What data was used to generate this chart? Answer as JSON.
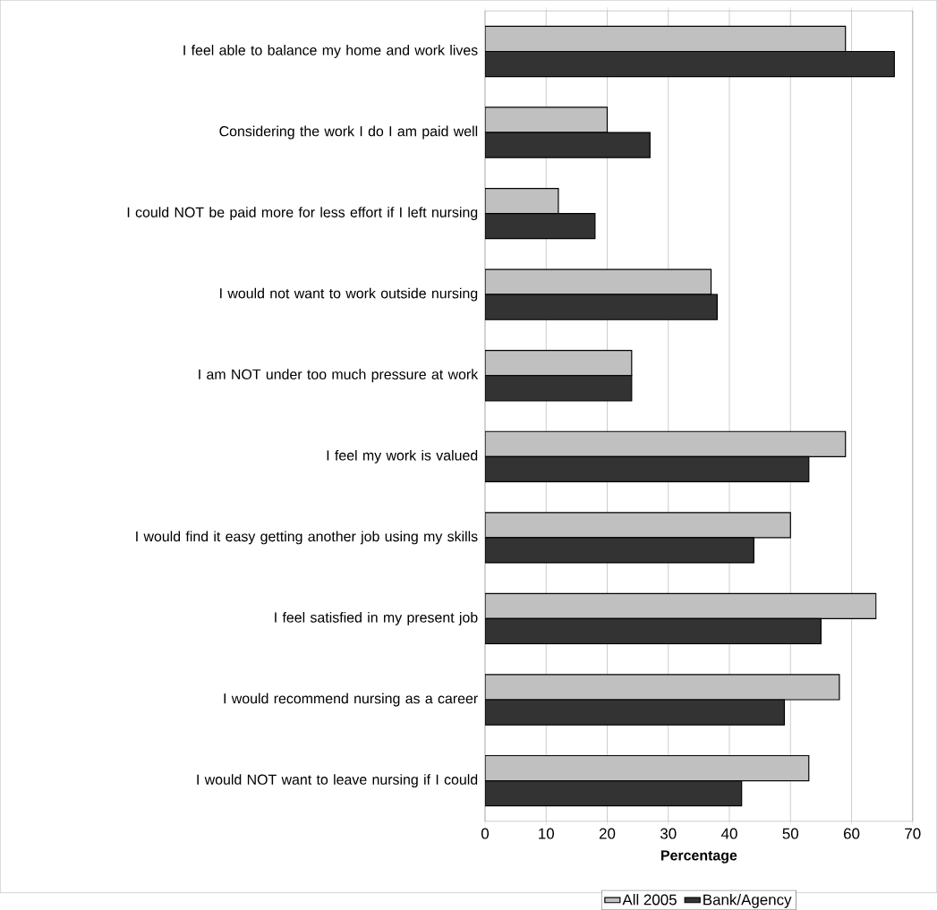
{
  "chart_data": {
    "type": "bar",
    "orientation": "horizontal",
    "xlabel": "Percentage",
    "categories": [
      "I feel able to balance my home and work lives",
      "Considering the work I do I am paid well",
      "I could NOT be paid more for less effort if I left nursing",
      "I would not want to work outside nursing",
      "I am NOT under too much pressure at work",
      "I feel my work is valued",
      "I would find it easy getting another job using my skills",
      "I feel satisfied in my present job",
      "I would recommend nursing as a career",
      "I would NOT want to leave nursing if I could"
    ],
    "series": [
      {
        "name": "All 2005",
        "color": "#c0c0c0",
        "values": [
          59,
          20,
          12,
          37,
          24,
          59,
          50,
          64,
          58,
          53
        ]
      },
      {
        "name": "Bank/Agency",
        "color": "#333333",
        "values": [
          67,
          27,
          18,
          38,
          24,
          53,
          44,
          55,
          49,
          42
        ]
      }
    ],
    "xlim": [
      0,
      70
    ],
    "xticks": [
      0,
      10,
      20,
      30,
      40,
      50,
      60,
      70
    ],
    "grid": "x",
    "legend": "bottom"
  }
}
